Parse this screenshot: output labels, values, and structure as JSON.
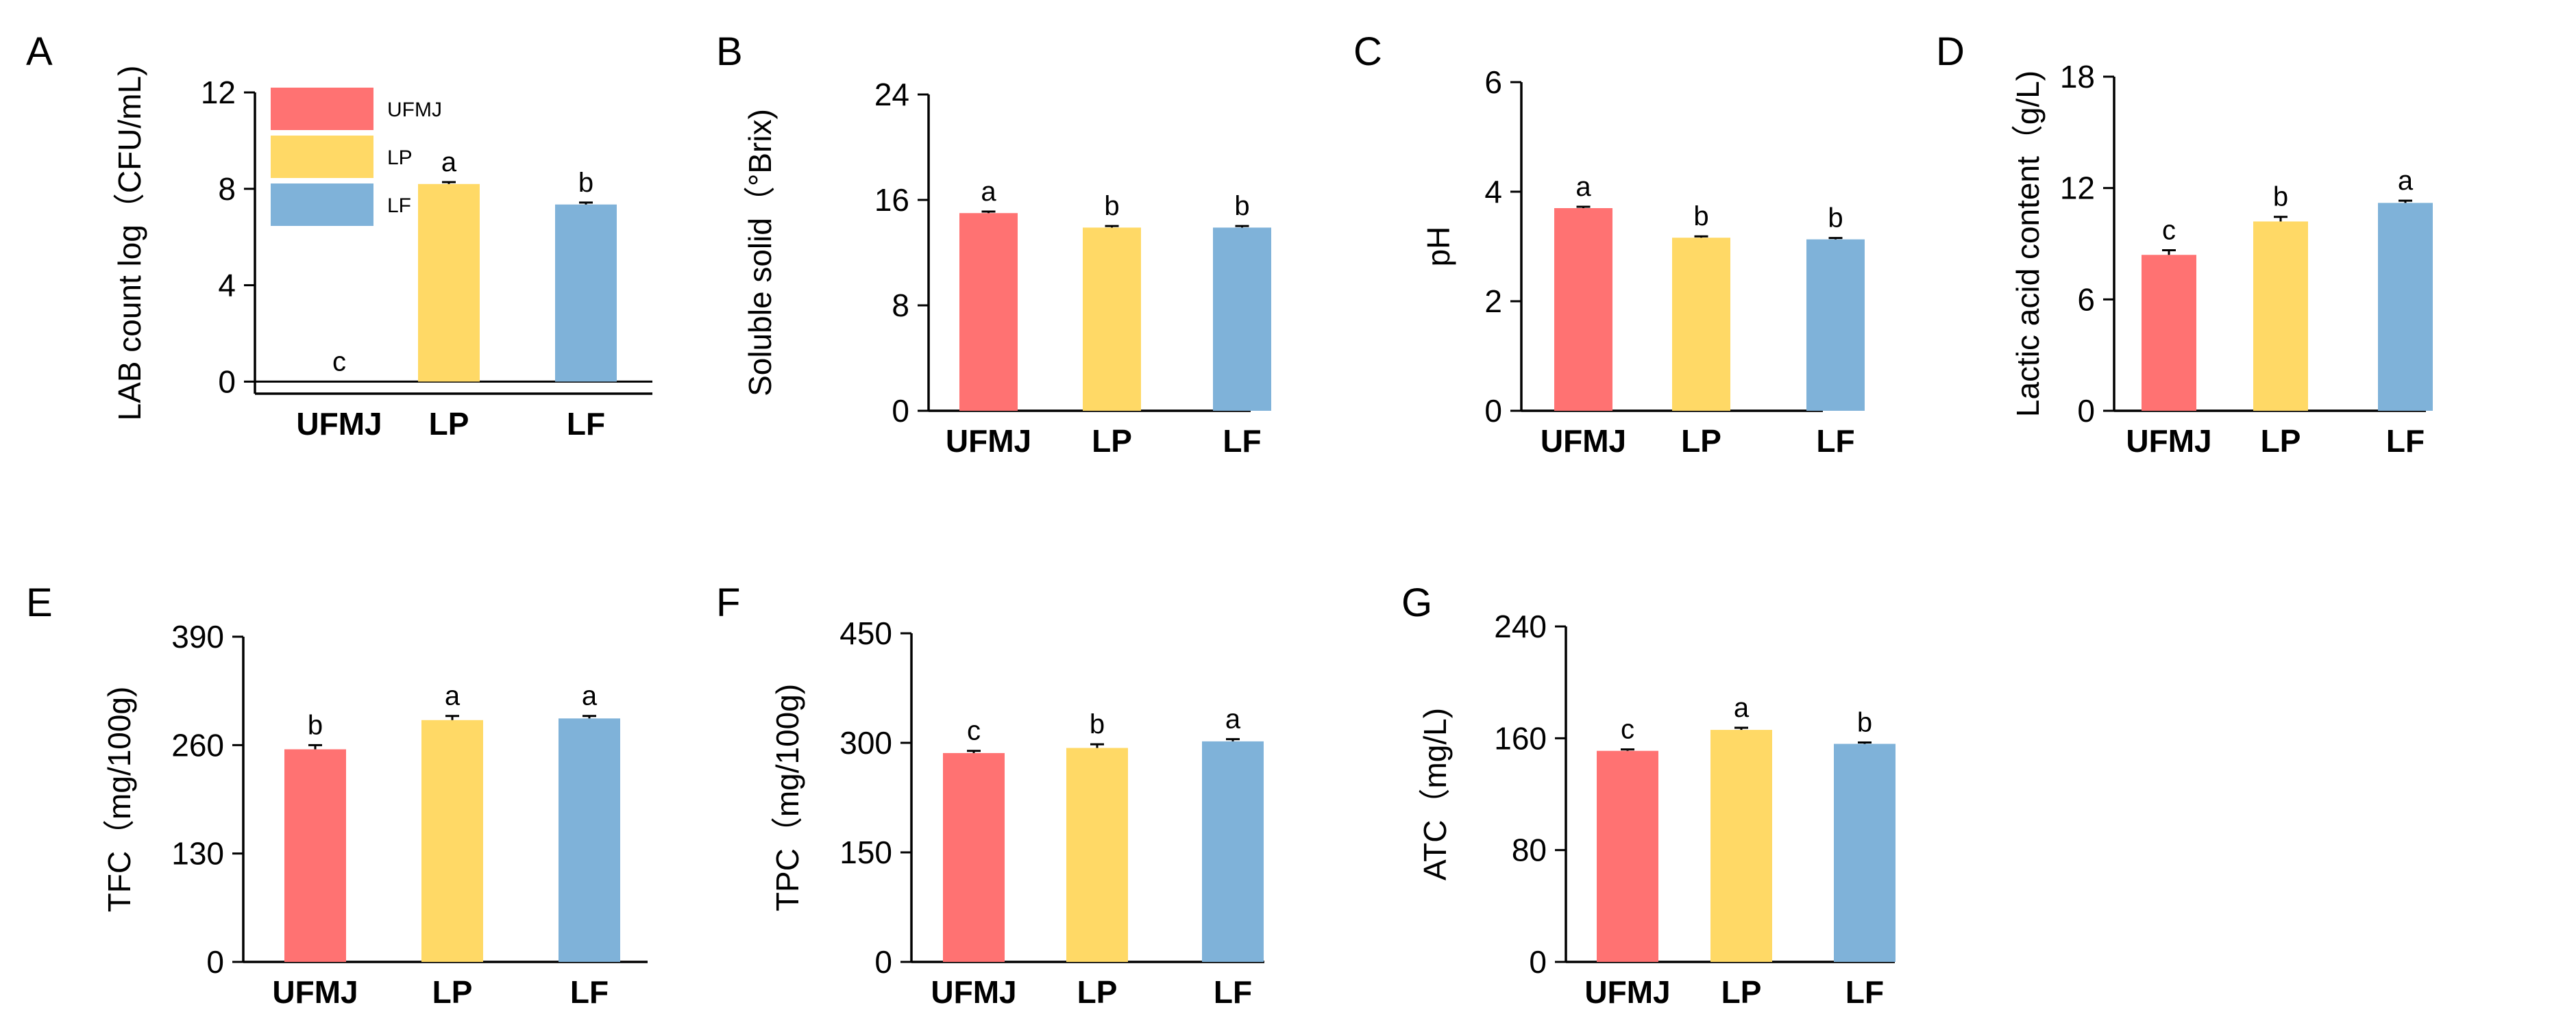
{
  "legend": [
    {
      "label": "UFMJ",
      "color": "#FF7272"
    },
    {
      "label": "LP",
      "color": "#FFD966"
    },
    {
      "label": "LF",
      "color": "#7FB2D9"
    }
  ],
  "chart_data": [
    {
      "panel": "A",
      "type": "bar",
      "categories": [
        "UFMJ",
        "LP",
        "LF"
      ],
      "values": [
        0,
        8.2,
        7.35
      ],
      "errors": [
        0,
        0.08,
        0.08
      ],
      "letters": [
        "c",
        "a",
        "b"
      ],
      "colors": [
        "#FF7272",
        "#FFD966",
        "#7FB2D9"
      ],
      "ylabel": "LAB count log（CFU/mL)",
      "ylim": [
        -0.5,
        12
      ],
      "yticks": [
        "0",
        "4",
        "8",
        "12"
      ],
      "ytick_values": [
        0,
        4,
        8,
        12
      ],
      "zero_line": true,
      "legend": true
    },
    {
      "panel": "B",
      "type": "bar",
      "categories": [
        "UFMJ",
        "LP",
        "LF"
      ],
      "values": [
        15.0,
        13.9,
        13.9
      ],
      "errors": [
        0.12,
        0.12,
        0.12
      ],
      "letters": [
        "a",
        "b",
        "b"
      ],
      "colors": [
        "#FF7272",
        "#FFD966",
        "#7FB2D9"
      ],
      "ylabel": "Soluble solid（°Brix)",
      "ylim": [
        0,
        24
      ],
      "yticks": [
        "0",
        "8",
        "16",
        "24"
      ],
      "ytick_values": [
        0,
        8,
        16,
        24
      ]
    },
    {
      "panel": "C",
      "type": "bar",
      "categories": [
        "UFMJ",
        "LP",
        "LF"
      ],
      "values": [
        3.7,
        3.16,
        3.13
      ],
      "errors": [
        0.025,
        0.025,
        0.025
      ],
      "letters": [
        "a",
        "b",
        "b"
      ],
      "colors": [
        "#FF7272",
        "#FFD966",
        "#7FB2D9"
      ],
      "ylabel": "pH",
      "ylim": [
        0,
        6
      ],
      "yticks": [
        "0",
        "2",
        "4",
        "6"
      ],
      "ytick_values": [
        0,
        2,
        4,
        6
      ]
    },
    {
      "panel": "D",
      "type": "bar",
      "categories": [
        "UFMJ",
        "LP",
        "LF"
      ],
      "values": [
        8.4,
        10.2,
        11.2
      ],
      "errors": [
        0.25,
        0.25,
        0.12
      ],
      "letters": [
        "c",
        "b",
        "a"
      ],
      "colors": [
        "#FF7272",
        "#FFD966",
        "#7FB2D9"
      ],
      "ylabel": "Lactic acid content（g/L)",
      "ylim": [
        0,
        18
      ],
      "yticks": [
        "0",
        "6",
        "12",
        "18"
      ],
      "ytick_values": [
        0,
        6,
        12,
        18
      ]
    },
    {
      "panel": "E",
      "type": "bar",
      "categories": [
        "UFMJ",
        "LP",
        "LF"
      ],
      "values": [
        255,
        290,
        292
      ],
      "errors": [
        5,
        5,
        3
      ],
      "letters": [
        "b",
        "a",
        "a"
      ],
      "colors": [
        "#FF7272",
        "#FFD966",
        "#7FB2D9"
      ],
      "ylabel": "TFC（mg/100g)",
      "ylim": [
        0,
        390
      ],
      "yticks": [
        "0",
        "130",
        "260",
        "390"
      ],
      "ytick_values": [
        0,
        130,
        260,
        390
      ]
    },
    {
      "panel": "F",
      "type": "bar",
      "categories": [
        "UFMJ",
        "LP",
        "LF"
      ],
      "values": [
        286,
        293,
        302
      ],
      "errors": [
        3,
        5,
        3
      ],
      "letters": [
        "c",
        "b",
        "a"
      ],
      "colors": [
        "#FF7272",
        "#FFD966",
        "#7FB2D9"
      ],
      "ylabel": "TPC（mg/100g)",
      "ylim": [
        0,
        450
      ],
      "yticks": [
        "0",
        "150",
        "300",
        "450"
      ],
      "ytick_values": [
        0,
        150,
        300,
        450
      ]
    },
    {
      "panel": "G",
      "type": "bar",
      "categories": [
        "UFMJ",
        "LP",
        "LF"
      ],
      "values": [
        151,
        166,
        156
      ],
      "errors": [
        1,
        1.5,
        1
      ],
      "letters": [
        "c",
        "a",
        "b"
      ],
      "colors": [
        "#FF7272",
        "#FFD966",
        "#7FB2D9"
      ],
      "ylabel": "ATC（mg/L)",
      "ylim": [
        0,
        240
      ],
      "yticks": [
        "0",
        "80",
        "160",
        "240"
      ],
      "ytick_values": [
        0,
        80,
        160,
        240
      ]
    }
  ]
}
